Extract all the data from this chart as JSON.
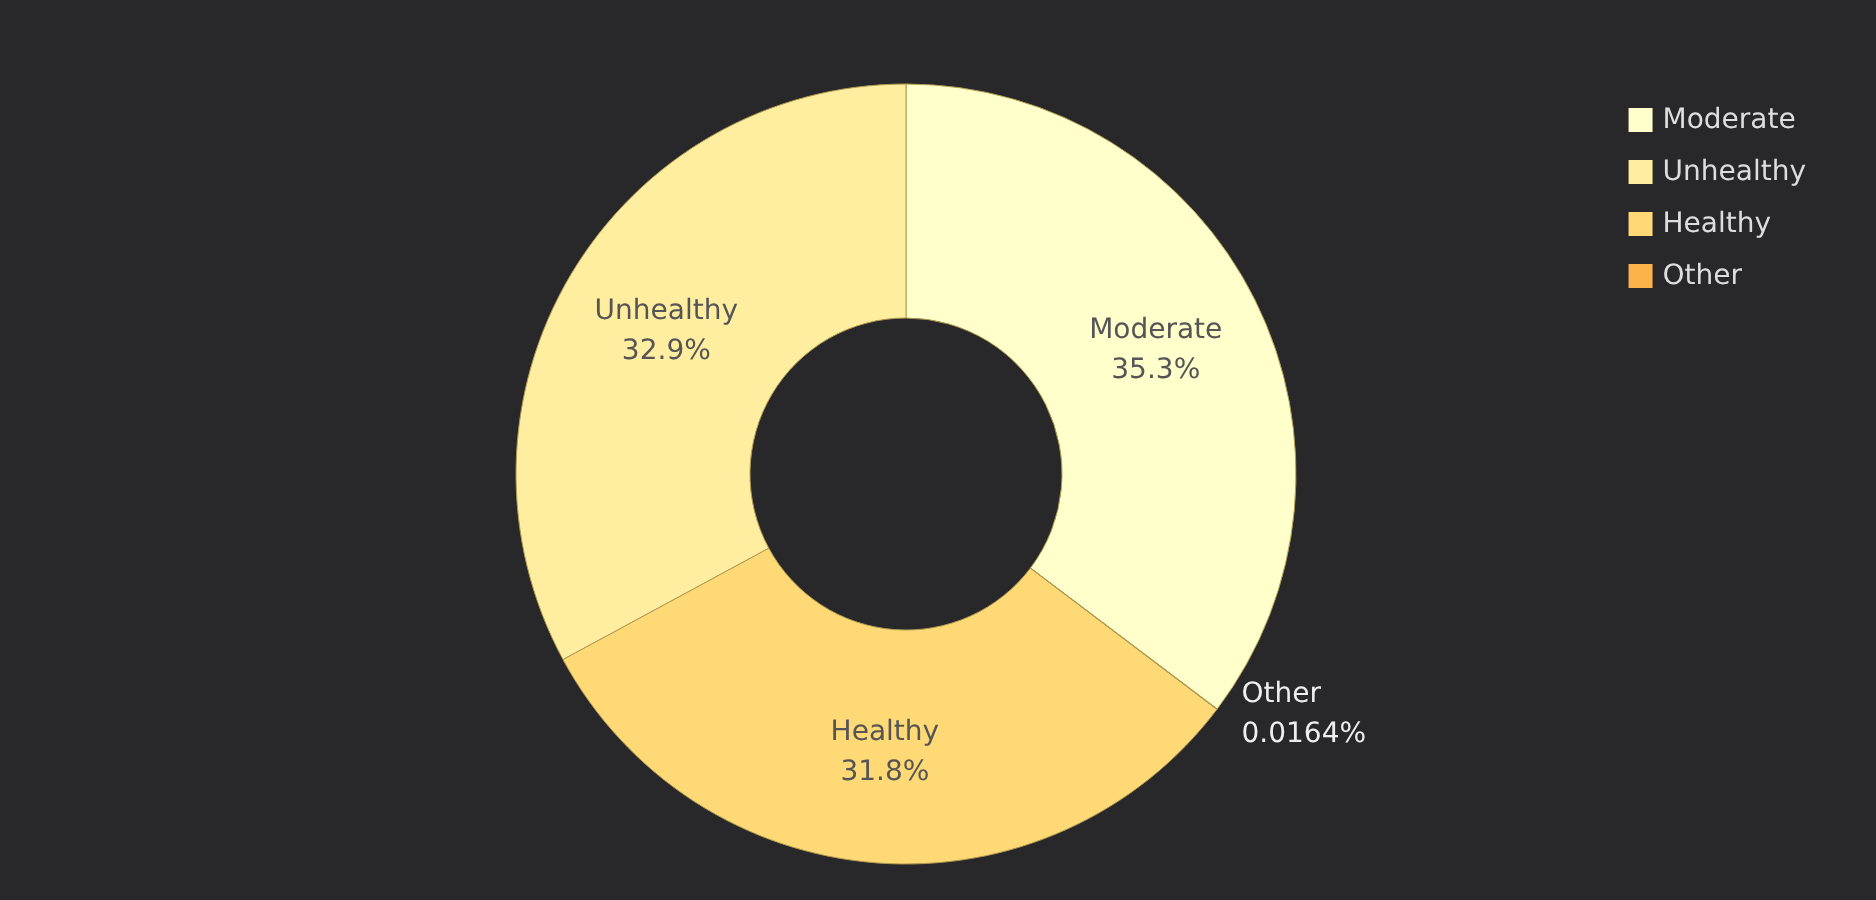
{
  "chart_data": {
    "type": "donut",
    "categories": [
      "Moderate",
      "Unhealthy",
      "Healthy",
      "Other"
    ],
    "values": [
      35.3,
      32.9,
      31.8,
      0.0164
    ],
    "colors": [
      "#ffffcc",
      "#ffeda0",
      "#fed976",
      "#feb24c"
    ],
    "value_labels": [
      "35.3%",
      "32.9%",
      "31.8%",
      "0.0164%"
    ],
    "legend": "top right"
  }
}
